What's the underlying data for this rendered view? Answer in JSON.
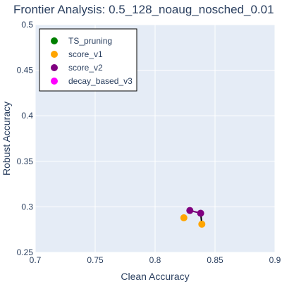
{
  "chart_data": {
    "type": "scatter",
    "title": "Frontier Analysis: 0.5_128_noaug_nosched_0.01",
    "xlabel": "Clean Accuracy",
    "ylabel": "Robust Accuracy",
    "xlim": [
      0.7,
      0.9
    ],
    "ylim": [
      0.25,
      0.5
    ],
    "xticks": [
      0.7,
      0.75,
      0.8,
      0.85,
      0.9
    ],
    "xtick_labels": [
      "0.7",
      "0.75",
      "0.8",
      "0.85",
      "0.9"
    ],
    "yticks": [
      0.25,
      0.3,
      0.35,
      0.4,
      0.45,
      0.5
    ],
    "ytick_labels": [
      "0.25",
      "0.3",
      "0.35",
      "0.4",
      "0.45",
      "0.5"
    ],
    "grid": true,
    "legend_position": "top-left",
    "series": [
      {
        "name": "TS_pruning",
        "color": "#008000",
        "mode": "markers",
        "points": []
      },
      {
        "name": "score_v1",
        "color": "#FFA500",
        "mode": "markers",
        "points": [
          {
            "x": 0.824,
            "y": 0.288
          },
          {
            "x": 0.839,
            "y": 0.281
          }
        ]
      },
      {
        "name": "score_v2",
        "color": "#800080",
        "mode": "lines+markers",
        "points": [
          {
            "x": 0.829,
            "y": 0.296
          },
          {
            "x": 0.838,
            "y": 0.293
          }
        ]
      },
      {
        "name": "decay_based_v3",
        "color": "#FF00FF",
        "mode": "markers",
        "points": []
      }
    ],
    "frontier_line": {
      "color": "#000000",
      "points": [
        {
          "x": 0.829,
          "y": 0.296
        },
        {
          "x": 0.838,
          "y": 0.293
        },
        {
          "x": 0.839,
          "y": 0.281
        }
      ]
    }
  }
}
